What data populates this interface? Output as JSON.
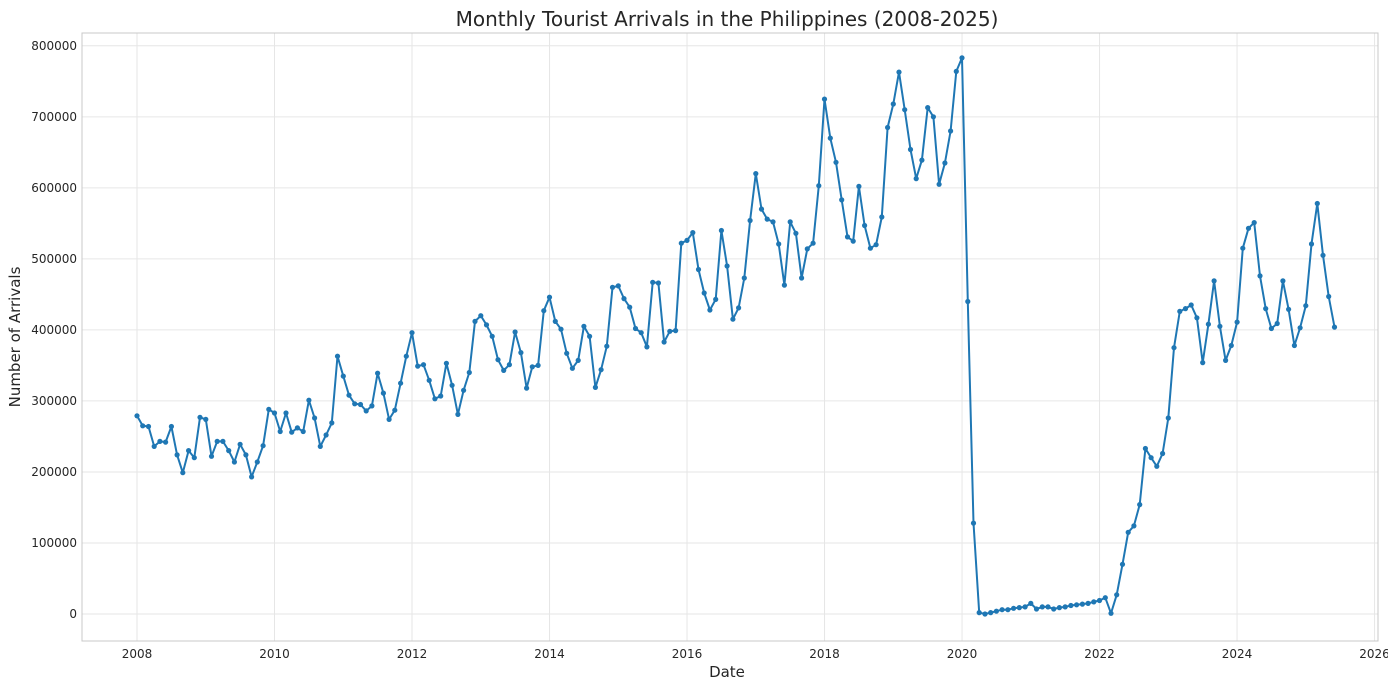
{
  "chart_data": {
    "type": "line",
    "title": "Monthly Tourist Arrivals in the Philippines (2008-2025)",
    "xlabel": "Date",
    "ylabel": "Number of Arrivals",
    "xlim": [
      2007.2,
      2026.05
    ],
    "ylim": [
      -38000,
      818000
    ],
    "xticks": [
      2008,
      2010,
      2012,
      2014,
      2016,
      2018,
      2020,
      2022,
      2024,
      2026
    ],
    "yticks": [
      0,
      100000,
      200000,
      300000,
      400000,
      500000,
      600000,
      700000,
      800000
    ],
    "grid": true,
    "color": "#1f77b4",
    "start": "2008-01",
    "frequency": "monthly",
    "series": [
      {
        "name": "Tourist Arrivals",
        "values": [
          279000,
          265000,
          264000,
          236000,
          243000,
          242000,
          264000,
          224000,
          199000,
          230000,
          220000,
          277000,
          274000,
          222000,
          243000,
          243000,
          230000,
          214000,
          239000,
          224000,
          193000,
          214000,
          237000,
          288000,
          283000,
          257000,
          283000,
          256000,
          262000,
          257000,
          301000,
          276000,
          236000,
          252000,
          269000,
          363000,
          335000,
          308000,
          296000,
          295000,
          286000,
          293000,
          339000,
          311000,
          274000,
          287000,
          325000,
          363000,
          396000,
          349000,
          351000,
          329000,
          303000,
          307000,
          353000,
          322000,
          281000,
          315000,
          340000,
          412000,
          420000,
          407000,
          391000,
          358000,
          343000,
          351000,
          397000,
          368000,
          318000,
          348000,
          350000,
          427000,
          446000,
          412000,
          401000,
          367000,
          346000,
          357000,
          405000,
          391000,
          319000,
          344000,
          377000,
          460000,
          462000,
          444000,
          432000,
          402000,
          396000,
          376000,
          467000,
          466000,
          383000,
          398000,
          399000,
          522000,
          526000,
          537000,
          485000,
          452000,
          428000,
          443000,
          540000,
          490000,
          415000,
          431000,
          473000,
          554000,
          620000,
          570000,
          556000,
          552000,
          521000,
          463000,
          552000,
          536000,
          473000,
          514000,
          522000,
          603000,
          725000,
          670000,
          636000,
          583000,
          531000,
          525000,
          602000,
          547000,
          515000,
          520000,
          559000,
          685000,
          718000,
          763000,
          710000,
          654000,
          613000,
          639000,
          713000,
          700000,
          605000,
          635000,
          680000,
          764000,
          783000,
          440000,
          128000,
          2000,
          0,
          2000,
          4000,
          6000,
          6000,
          8000,
          9000,
          10000,
          15000,
          7000,
          10000,
          10000,
          7000,
          9000,
          10000,
          12000,
          13000,
          14000,
          15000,
          17000,
          19000,
          23000,
          1000,
          27000,
          70000,
          115000,
          124000,
          154000,
          233000,
          220000,
          208000,
          226000,
          276000,
          375000,
          426000,
          430000,
          435000,
          417000,
          354000,
          408000,
          469000,
          405000,
          357000,
          378000,
          411000,
          515000,
          543000,
          551000,
          476000,
          430000,
          402000,
          409000,
          469000,
          429000,
          378000,
          403000,
          434000,
          521000,
          578000,
          505000,
          447000,
          404000
        ]
      }
    ]
  }
}
